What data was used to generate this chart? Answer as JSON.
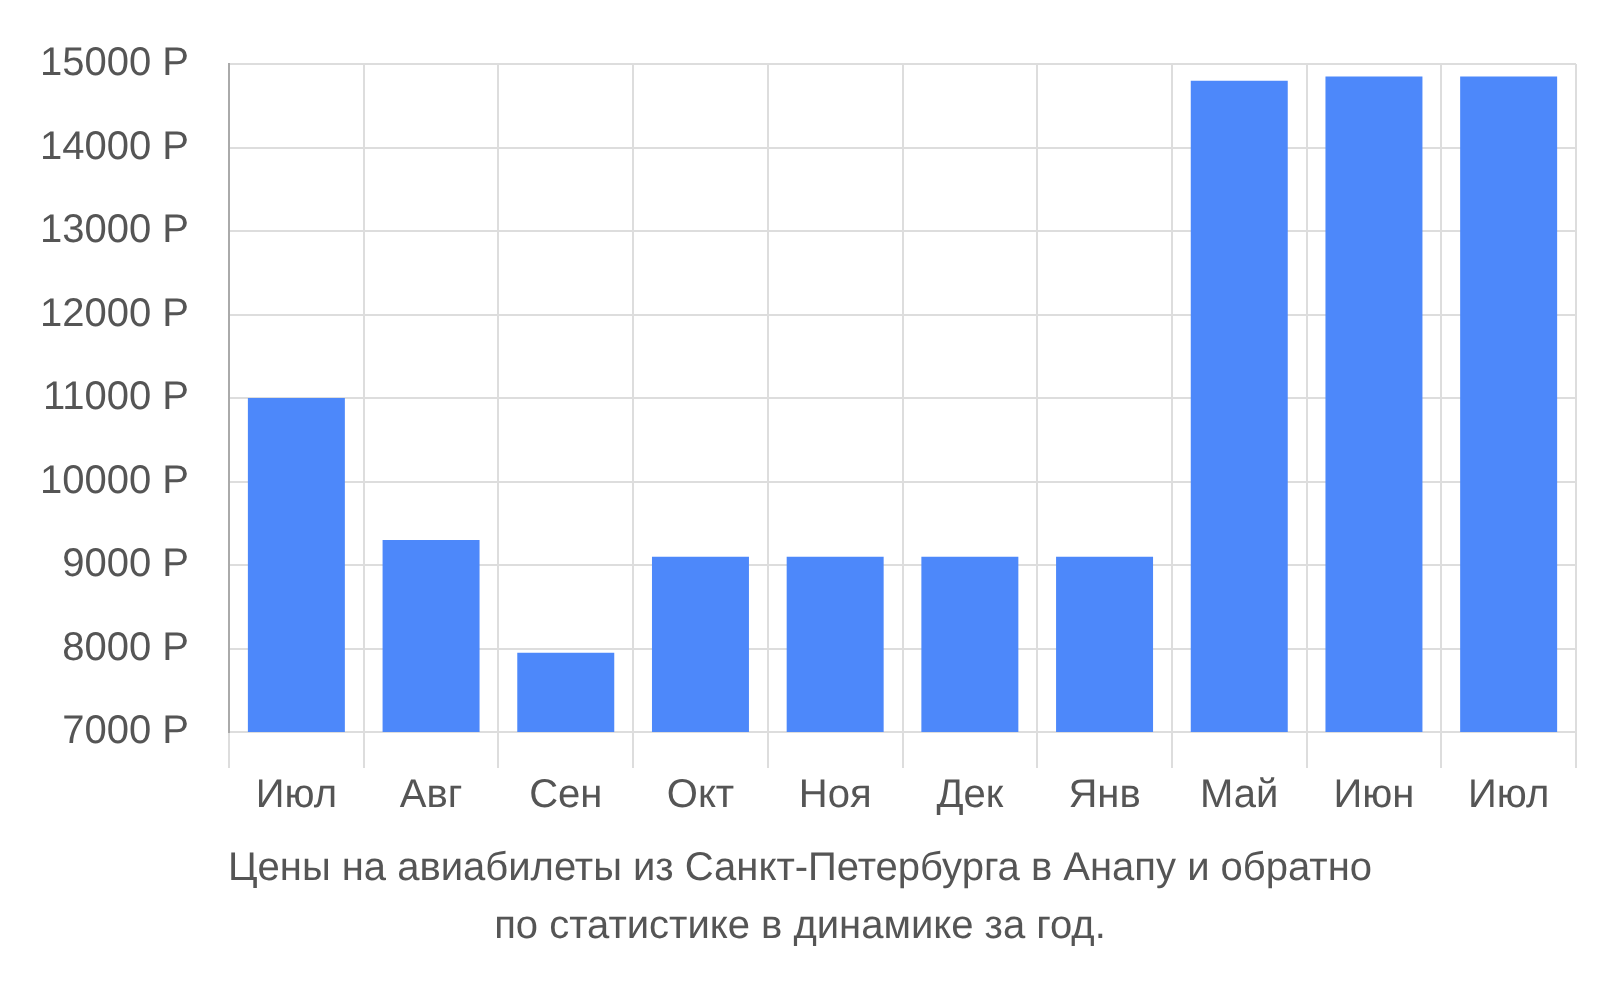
{
  "chart_data": {
    "type": "bar",
    "categories": [
      "Июл",
      "Авг",
      "Сен",
      "Окт",
      "Ноя",
      "Дек",
      "Янв",
      "Май",
      "Июн",
      "Июл"
    ],
    "values": [
      11000,
      9300,
      7950,
      9100,
      9100,
      9100,
      9100,
      14800,
      14850,
      14850
    ],
    "color": "#4d88fa",
    "ylim": [
      7000,
      15000
    ],
    "yticks": [
      {
        "value": 7000,
        "label": "7000 Р"
      },
      {
        "value": 8000,
        "label": "8000 Р"
      },
      {
        "value": 9000,
        "label": "9000 Р"
      },
      {
        "value": 10000,
        "label": "10000 Р"
      },
      {
        "value": 11000,
        "label": "11000 Р"
      },
      {
        "value": 12000,
        "label": "12000 Р"
      },
      {
        "value": 13000,
        "label": "13000 Р"
      },
      {
        "value": 14000,
        "label": "14000 Р"
      },
      {
        "value": 15000,
        "label": "15000 Р"
      }
    ],
    "grid": true,
    "annotations": [
      "Цены на авиабилеты из Санкт-Петербурга в Анапу и обратно",
      "по статистике в динамике за год."
    ]
  }
}
